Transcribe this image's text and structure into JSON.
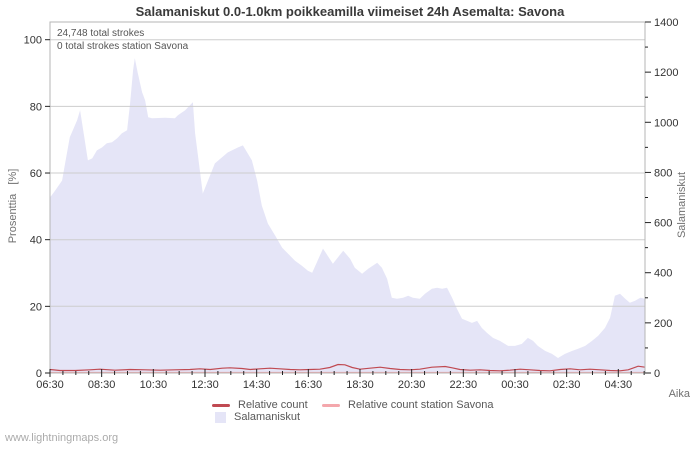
{
  "watermark": "www.lightningmaps.org",
  "chart_data": {
    "type": "area",
    "title": "Salamaniskut 0.0-1.0km poikkeamilla viimeiset 24h Asemalta: Savona",
    "xlabel": "Aika",
    "ylabel_left": "Prosenttia   [%]",
    "ylabel_right": "Salamaniskut",
    "annotations": [
      "24,748 total strokes",
      "0 total strokes station Savona"
    ],
    "grid": "horizontal",
    "legend_position": "bottom",
    "colors": {
      "area_fill": "#e5e5f7",
      "relative_count": "#c04a52",
      "relative_count_station": "#f4a7ac",
      "gridline": "#cdcdcd",
      "plot_border": "#b5b5b5",
      "tick": "#222222"
    },
    "x_axis": {
      "tick_labels": [
        "06:30",
        "08:30",
        "10:30",
        "12:30",
        "14:30",
        "16:30",
        "18:30",
        "20:30",
        "22:30",
        "00:30",
        "02:30",
        "04:30"
      ],
      "tick_minutes": [
        0,
        120,
        240,
        360,
        480,
        600,
        720,
        840,
        960,
        1080,
        1200,
        1320
      ],
      "minor_step_minutes": 30,
      "range_minutes": [
        0,
        1382
      ]
    },
    "y_left": {
      "tick_labels": [
        "0",
        "20",
        "40",
        "60",
        "80",
        "100"
      ],
      "ticks": [
        0,
        20,
        40,
        60,
        80,
        100
      ],
      "range": [
        0,
        105.3
      ],
      "unit": "%"
    },
    "y_right": {
      "tick_labels": [
        "0",
        "200",
        "400",
        "600",
        "800",
        "1000",
        "1200",
        "1400"
      ],
      "ticks": [
        0,
        200,
        400,
        600,
        800,
        1000,
        1200,
        1400
      ],
      "minor_step": 100,
      "range": [
        0,
        1400
      ]
    },
    "series": [
      {
        "name": "Salamaniskut",
        "type": "area",
        "axis": "right",
        "color": "#e5e5f7",
        "points": [
          [
            0,
            700
          ],
          [
            12,
            728
          ],
          [
            28,
            768
          ],
          [
            35,
            836
          ],
          [
            46,
            940
          ],
          [
            63,
            1008
          ],
          [
            70,
            1048
          ],
          [
            77,
            968
          ],
          [
            88,
            848
          ],
          [
            98,
            856
          ],
          [
            109,
            888
          ],
          [
            121,
            900
          ],
          [
            132,
            916
          ],
          [
            144,
            920
          ],
          [
            156,
            936
          ],
          [
            167,
            956
          ],
          [
            179,
            968
          ],
          [
            186,
            1076
          ],
          [
            193,
            1208
          ],
          [
            197,
            1256
          ],
          [
            204,
            1196
          ],
          [
            214,
            1120
          ],
          [
            221,
            1088
          ],
          [
            228,
            1020
          ],
          [
            237,
            1016
          ],
          [
            267,
            1018
          ],
          [
            290,
            1016
          ],
          [
            297,
            1028
          ],
          [
            314,
            1048
          ],
          [
            325,
            1068
          ],
          [
            332,
            1080
          ],
          [
            337,
            956
          ],
          [
            355,
            716
          ],
          [
            383,
            836
          ],
          [
            413,
            880
          ],
          [
            437,
            900
          ],
          [
            448,
            908
          ],
          [
            469,
            848
          ],
          [
            481,
            768
          ],
          [
            492,
            668
          ],
          [
            506,
            596
          ],
          [
            523,
            548
          ],
          [
            539,
            500
          ],
          [
            553,
            476
          ],
          [
            569,
            448
          ],
          [
            585,
            428
          ],
          [
            599,
            408
          ],
          [
            609,
            400
          ],
          [
            634,
            496
          ],
          [
            657,
            436
          ],
          [
            681,
            488
          ],
          [
            697,
            456
          ],
          [
            708,
            420
          ],
          [
            725,
            396
          ],
          [
            739,
            416
          ],
          [
            760,
            440
          ],
          [
            771,
            420
          ],
          [
            783,
            376
          ],
          [
            794,
            300
          ],
          [
            806,
            296
          ],
          [
            820,
            300
          ],
          [
            832,
            308
          ],
          [
            843,
            300
          ],
          [
            859,
            296
          ],
          [
            871,
            316
          ],
          [
            887,
            336
          ],
          [
            899,
            340
          ],
          [
            911,
            336
          ],
          [
            922,
            340
          ],
          [
            934,
            300
          ],
          [
            945,
            256
          ],
          [
            957,
            216
          ],
          [
            969,
            208
          ],
          [
            980,
            200
          ],
          [
            992,
            208
          ],
          [
            1003,
            180
          ],
          [
            1015,
            160
          ],
          [
            1029,
            140
          ],
          [
            1045,
            128
          ],
          [
            1064,
            108
          ],
          [
            1080,
            108
          ],
          [
            1096,
            116
          ],
          [
            1110,
            140
          ],
          [
            1122,
            128
          ],
          [
            1133,
            108
          ],
          [
            1150,
            88
          ],
          [
            1166,
            76
          ],
          [
            1180,
            60
          ],
          [
            1196,
            76
          ],
          [
            1213,
            88
          ],
          [
            1226,
            96
          ],
          [
            1243,
            108
          ],
          [
            1259,
            128
          ],
          [
            1273,
            148
          ],
          [
            1289,
            180
          ],
          [
            1301,
            220
          ],
          [
            1312,
            308
          ],
          [
            1324,
            316
          ],
          [
            1336,
            296
          ],
          [
            1347,
            280
          ],
          [
            1359,
            288
          ],
          [
            1371,
            300
          ],
          [
            1382,
            296
          ]
        ]
      },
      {
        "name": "Relative count",
        "type": "line",
        "axis": "left",
        "color": "#c04a52",
        "points": [
          [
            0,
            0.9
          ],
          [
            23,
            0.6
          ],
          [
            58,
            0.6
          ],
          [
            93,
            0.8
          ],
          [
            116,
            1.0
          ],
          [
            151,
            0.7
          ],
          [
            186,
            0.9
          ],
          [
            221,
            0.8
          ],
          [
            256,
            0.7
          ],
          [
            290,
            0.8
          ],
          [
            325,
            0.9
          ],
          [
            348,
            1.1
          ],
          [
            372,
            0.9
          ],
          [
            400,
            1.3
          ],
          [
            418,
            1.4
          ],
          [
            446,
            1.2
          ],
          [
            465,
            0.9
          ],
          [
            488,
            1.1
          ],
          [
            511,
            1.3
          ],
          [
            534,
            1.1
          ],
          [
            558,
            0.9
          ],
          [
            581,
            0.8
          ],
          [
            604,
            0.9
          ],
          [
            627,
            1.0
          ],
          [
            650,
            1.5
          ],
          [
            669,
            2.4
          ],
          [
            685,
            2.3
          ],
          [
            702,
            1.5
          ],
          [
            720,
            1.0
          ],
          [
            743,
            1.3
          ],
          [
            767,
            1.6
          ],
          [
            790,
            1.2
          ],
          [
            813,
            0.9
          ],
          [
            836,
            0.8
          ],
          [
            859,
            1.0
          ],
          [
            887,
            1.6
          ],
          [
            918,
            1.8
          ],
          [
            934,
            1.4
          ],
          [
            952,
            0.9
          ],
          [
            976,
            0.7
          ],
          [
            999,
            0.8
          ],
          [
            1022,
            0.6
          ],
          [
            1045,
            0.5
          ],
          [
            1068,
            0.7
          ],
          [
            1092,
            1.0
          ],
          [
            1115,
            0.8
          ],
          [
            1138,
            0.6
          ],
          [
            1161,
            0.5
          ],
          [
            1185,
            0.9
          ],
          [
            1208,
            1.1
          ],
          [
            1231,
            0.8
          ],
          [
            1254,
            1.0
          ],
          [
            1278,
            0.8
          ],
          [
            1301,
            0.6
          ],
          [
            1324,
            0.5
          ],
          [
            1343,
            0.8
          ],
          [
            1366,
            1.9
          ],
          [
            1382,
            1.6
          ]
        ]
      },
      {
        "name": "Relative count station Savona",
        "type": "line",
        "axis": "left",
        "color": "#f4a7ac",
        "points": [
          [
            0,
            0
          ],
          [
            1382,
            0
          ]
        ]
      }
    ],
    "legend": {
      "items": [
        {
          "label": "Relative count",
          "color": "#c04a52",
          "swatch": "line"
        },
        {
          "label": "Relative count station Savona",
          "color": "#f4a7ac",
          "swatch": "line"
        },
        {
          "label": "Salamaniskut",
          "color": "#e5e5f7",
          "swatch": "box"
        }
      ]
    }
  }
}
